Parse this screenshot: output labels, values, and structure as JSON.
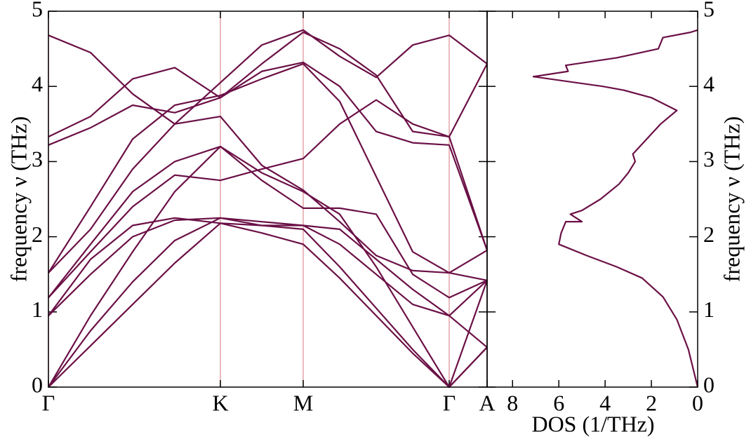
{
  "chart_data": [
    {
      "type": "line",
      "y_label": "frequency ν (THz)",
      "x": [
        0,
        0.6,
        1.2,
        1.8,
        2.45,
        3.04,
        3.63,
        4.15,
        4.67,
        5.19,
        5.71,
        6.25
      ],
      "xlim": [
        0,
        6.25
      ],
      "xticks": [
        {
          "value": 0,
          "label": "Γ"
        },
        {
          "value": 2.45,
          "label": "K"
        },
        {
          "value": 3.63,
          "label": "M"
        },
        {
          "value": 5.71,
          "label": "Γ"
        },
        {
          "value": 6.25,
          "label": "A"
        }
      ],
      "ylim": [
        0,
        5
      ],
      "yticks": [
        0,
        1,
        2,
        3,
        4,
        5
      ],
      "grid": true,
      "grid_color": "#e3a3a8",
      "color": "#6b1046",
      "series": [
        {
          "values": [
            0,
            0.55,
            1.1,
            1.65,
            2.18,
            2.05,
            1.9,
            1.45,
            0.95,
            0.45,
            0,
            0.53
          ]
        },
        {
          "values": [
            0,
            0.75,
            1.4,
            1.95,
            2.25,
            2.15,
            2.1,
            1.6,
            1.05,
            0.5,
            0,
            0.53
          ]
        },
        {
          "values": [
            0,
            0.95,
            1.8,
            2.6,
            3.2,
            2.85,
            2.6,
            2.3,
            1.6,
            0.8,
            0,
            1.42
          ]
        },
        {
          "values": [
            0.95,
            1.5,
            2.0,
            2.22,
            2.25,
            2.2,
            2.15,
            1.9,
            1.5,
            1.1,
            0.95,
            0.53
          ]
        },
        {
          "values": [
            0.95,
            1.7,
            2.15,
            2.25,
            2.18,
            2.15,
            2.15,
            2.1,
            1.7,
            1.3,
            0.95,
            1.42
          ]
        },
        {
          "values": [
            1.19,
            1.8,
            2.4,
            2.82,
            2.75,
            2.9,
            3.04,
            3.5,
            3.82,
            3.5,
            3.33,
            1.82
          ]
        },
        {
          "values": [
            1.19,
            1.9,
            2.6,
            3.0,
            3.2,
            2.75,
            2.38,
            2.38,
            2.3,
            1.5,
            1.19,
            1.42
          ]
        },
        {
          "values": [
            1.52,
            2.1,
            2.9,
            3.5,
            3.6,
            2.95,
            2.62,
            2.2,
            1.75,
            1.55,
            1.52,
            1.42
          ]
        },
        {
          "values": [
            1.52,
            2.4,
            3.3,
            3.75,
            3.88,
            4.1,
            4.3,
            3.8,
            2.8,
            1.8,
            1.52,
            1.82
          ]
        },
        {
          "values": [
            3.22,
            3.45,
            3.75,
            3.65,
            3.85,
            4.2,
            4.32,
            4.0,
            3.4,
            3.25,
            3.22,
            1.82
          ]
        },
        {
          "values": [
            3.33,
            3.6,
            4.1,
            4.25,
            3.85,
            4.3,
            4.72,
            4.5,
            4.15,
            3.4,
            3.33,
            4.3
          ]
        },
        {
          "values": [
            4.68,
            4.45,
            3.9,
            3.5,
            4.05,
            4.55,
            4.75,
            4.4,
            4.12,
            4.55,
            4.68,
            4.3
          ]
        }
      ]
    },
    {
      "type": "line",
      "x_label": "DOS (1/THz)",
      "y_label": "frequency ν (THz)",
      "x": [
        0,
        0.4,
        0.9,
        1.5,
        2.4,
        3.5,
        4.8,
        6,
        5.9,
        5.7,
        5,
        5.5,
        5,
        4.2,
        3.4,
        3,
        2.7,
        2.8,
        2.2,
        1.6,
        0.9,
        2,
        3.2,
        4.1,
        7.1,
        5.6,
        5.7,
        3.5,
        1.7,
        1.5,
        0.3,
        0
      ],
      "xlim": [
        9.1,
        0
      ],
      "xticks": [
        8,
        6,
        4,
        2,
        0
      ],
      "ylim": [
        0,
        5
      ],
      "yticks": [
        0,
        1,
        2,
        3,
        4,
        5
      ],
      "color": "#6b1046",
      "series": [
        {
          "values": [
            0,
            0.5,
            0.9,
            1.2,
            1.45,
            1.6,
            1.75,
            1.9,
            2.05,
            2.2,
            2.2,
            2.3,
            2.35,
            2.5,
            2.7,
            2.85,
            3.0,
            3.1,
            3.3,
            3.5,
            3.68,
            3.85,
            3.95,
            4.0,
            4.13,
            4.2,
            4.28,
            4.38,
            4.5,
            4.65,
            4.72,
            4.75
          ]
        }
      ]
    }
  ]
}
